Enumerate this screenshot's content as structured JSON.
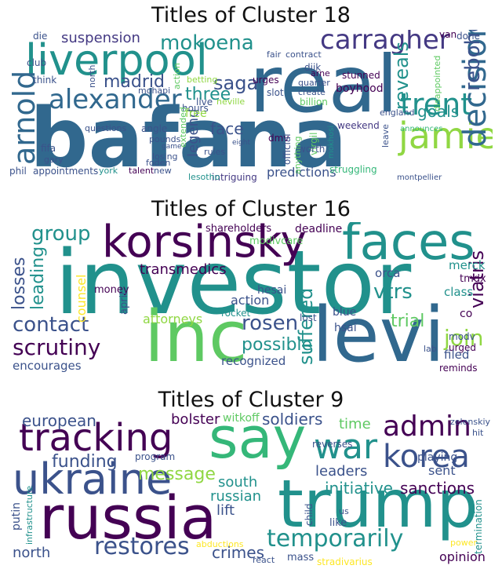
{
  "colors": {
    "c1": "#440154",
    "c2": "#3b528b",
    "c3": "#21918c",
    "c4": "#5ec962",
    "c5": "#fde725",
    "c6": "#31688e",
    "c7": "#35b779",
    "c8": "#90d743",
    "c9": "#443983"
  },
  "panels": [
    {
      "title": "Titles of Cluster 18",
      "words": [
        {
          "t": "bafana",
          "c": "c6"
        },
        {
          "t": "real",
          "c": "c6"
        },
        {
          "t": "liverpool",
          "c": "c3"
        },
        {
          "t": "carragher",
          "c": "c9"
        },
        {
          "t": "alexander",
          "c": "c6"
        },
        {
          "t": "arnold",
          "c": "c6"
        },
        {
          "t": "jamie",
          "c": "c8"
        },
        {
          "t": "trent",
          "c": "c3"
        },
        {
          "t": "decision",
          "c": "c6"
        },
        {
          "t": "mokoena",
          "c": "c3"
        },
        {
          "t": "madrid",
          "c": "c2"
        },
        {
          "t": "saga",
          "c": "c2"
        },
        {
          "t": "reveals",
          "c": "c3"
        },
        {
          "t": "rebohọ",
          "c": "c2"
        },
        {
          "t": "goals",
          "c": "c3"
        },
        {
          "t": "suspension",
          "c": "c9"
        },
        {
          "t": "three",
          "c": "c3"
        },
        {
          "t": "face",
          "c": "c2"
        },
        {
          "t": "legend",
          "c": "c2"
        },
        {
          "t": "predictions",
          "c": "c2"
        },
        {
          "t": "boyhood",
          "c": "c1"
        },
        {
          "t": "stunned",
          "c": "c1"
        },
        {
          "t": "billion",
          "c": "c4"
        },
        {
          "t": "weekend",
          "c": "c9"
        },
        {
          "t": "club",
          "c": "c2"
        },
        {
          "t": "questions",
          "c": "c2"
        },
        {
          "t": "appointments",
          "c": "c2"
        },
        {
          "t": "fifa",
          "c": "c2"
        },
        {
          "t": "phil",
          "c": "c2"
        },
        {
          "t": "intriguing",
          "c": "c9"
        },
        {
          "t": "montpellier",
          "c": "c2"
        },
        {
          "t": "struggling",
          "c": "c7"
        },
        {
          "t": "announces",
          "c": "c7"
        },
        {
          "t": "mokhosi",
          "c": "c3"
        },
        {
          "t": "virgil",
          "c": "c4"
        },
        {
          "t": "dmv",
          "c": "c1"
        },
        {
          "t": "worth",
          "c": "c2"
        },
        {
          "t": "official",
          "c": "c2"
        },
        {
          "t": "dijk",
          "c": "c2"
        },
        {
          "t": "slot",
          "c": "c2"
        },
        {
          "t": "quarter",
          "c": "c2"
        },
        {
          "t": "create",
          "c": "c2"
        },
        {
          "t": "arne",
          "c": "c1"
        },
        {
          "t": "urges",
          "c": "c1"
        },
        {
          "t": "neville",
          "c": "c8"
        },
        {
          "t": "live",
          "c": "c2"
        },
        {
          "t": "hours",
          "c": "c2"
        },
        {
          "t": "free",
          "c": "c8"
        },
        {
          "t": "betting",
          "c": "c8"
        },
        {
          "t": "angle",
          "c": "c2"
        },
        {
          "t": "pounds",
          "c": "c2"
        },
        {
          "t": "losing",
          "c": "c2"
        },
        {
          "t": "rules",
          "c": "c2"
        },
        {
          "t": "lesotho",
          "c": "c3"
        },
        {
          "t": "talent",
          "c": "c1"
        },
        {
          "t": "york",
          "c": "c3"
        },
        {
          "t": "gary",
          "c": "c2"
        },
        {
          "t": "think",
          "c": "c2"
        },
        {
          "t": "die",
          "c": "c2"
        },
        {
          "t": "done",
          "c": "c2"
        },
        {
          "t": "van",
          "c": "c1"
        },
        {
          "t": "contract",
          "c": "c2"
        },
        {
          "t": "fair",
          "c": "c2"
        },
        {
          "t": "disappointed",
          "c": "c4"
        },
        {
          "t": "extended",
          "c": "c4"
        },
        {
          "t": "foden",
          "c": "c2"
        },
        {
          "t": "new",
          "c": "c2"
        },
        {
          "t": "england",
          "c": "c2"
        },
        {
          "t": "leave",
          "c": "c2"
        },
        {
          "t": "mohapi",
          "c": "c2"
        },
        {
          "t": "action",
          "c": "c4"
        },
        {
          "t": "eight",
          "c": "c2"
        },
        {
          "t": "anything",
          "c": "c4"
        },
        {
          "t": "game",
          "c": "c2"
        },
        {
          "t": "north",
          "c": "c2"
        }
      ]
    },
    {
      "title": "Titles of Cluster 16",
      "words": [
        {
          "t": "investor",
          "c": "c3"
        },
        {
          "t": "inc",
          "c": "c4"
        },
        {
          "t": "levi",
          "c": "c6"
        },
        {
          "t": "korsinsky",
          "c": "c1"
        },
        {
          "t": "faces",
          "c": "c3"
        },
        {
          "t": "scrutiny",
          "c": "c1"
        },
        {
          "t": "contact",
          "c": "c2"
        },
        {
          "t": "group",
          "c": "c3"
        },
        {
          "t": "rosen",
          "c": "c2"
        },
        {
          "t": "join",
          "c": "c8"
        },
        {
          "t": "suffered",
          "c": "c3"
        },
        {
          "t": "vtrs",
          "c": "c3"
        },
        {
          "t": "possible",
          "c": "c3"
        },
        {
          "t": "trial",
          "c": "c4"
        },
        {
          "t": "viatris",
          "c": "c1"
        },
        {
          "t": "losses",
          "c": "c2"
        },
        {
          "t": "leading",
          "c": "c3"
        },
        {
          "t": "transmedics",
          "c": "c1"
        },
        {
          "t": "action",
          "c": "c2"
        },
        {
          "t": "attorneys",
          "c": "c8"
        },
        {
          "t": "encourages",
          "c": "c2"
        },
        {
          "t": "recognized",
          "c": "c2"
        },
        {
          "t": "shareholders",
          "c": "c1"
        },
        {
          "t": "deadline",
          "c": "c1"
        },
        {
          "t": "modivcare",
          "c": "c4"
        },
        {
          "t": "orca",
          "c": "c2"
        },
        {
          "t": "merck",
          "c": "c3"
        },
        {
          "t": "tmdx",
          "c": "c1"
        },
        {
          "t": "class",
          "c": "c3"
        },
        {
          "t": "co",
          "c": "c1"
        },
        {
          "t": "money",
          "c": "c1"
        },
        {
          "t": "hesai",
          "c": "c2"
        },
        {
          "t": "counsel",
          "c": "c5"
        },
        {
          "t": "april",
          "c": "c2"
        },
        {
          "t": "rocket",
          "c": "c3"
        },
        {
          "t": "blue",
          "c": "c2"
        },
        {
          "t": "hsai",
          "c": "c2"
        },
        {
          "t": "lost",
          "c": "c2"
        },
        {
          "t": "modv",
          "c": "c2"
        },
        {
          "t": "urged",
          "c": "c1"
        },
        {
          "t": "filed",
          "c": "c2"
        },
        {
          "t": "reminds",
          "c": "c1"
        },
        {
          "t": "lab",
          "c": "c2"
        }
      ]
    },
    {
      "title": "Titles of Cluster 9",
      "words": [
        {
          "t": "russia",
          "c": "c1"
        },
        {
          "t": "trump",
          "c": "c3"
        },
        {
          "t": "ukraine",
          "c": "c2"
        },
        {
          "t": "say",
          "c": "c7"
        },
        {
          "t": "tracking",
          "c": "c1"
        },
        {
          "t": "war",
          "c": "c3"
        },
        {
          "t": "korea",
          "c": "c2"
        },
        {
          "t": "admin",
          "c": "c1"
        },
        {
          "t": "temporarily",
          "c": "c3"
        },
        {
          "t": "restores",
          "c": "c2"
        },
        {
          "t": "european",
          "c": "c2"
        },
        {
          "t": "funding",
          "c": "c2"
        },
        {
          "t": "message",
          "c": "c8"
        },
        {
          "t": "bolster",
          "c": "c1"
        },
        {
          "t": "witkoff",
          "c": "c4"
        },
        {
          "t": "soldiers",
          "c": "c2"
        },
        {
          "t": "time",
          "c": "c4"
        },
        {
          "t": "initiative",
          "c": "c3"
        },
        {
          "t": "sanctions",
          "c": "c1"
        },
        {
          "t": "leaders",
          "c": "c2"
        },
        {
          "t": "sent",
          "c": "c2"
        },
        {
          "t": "playing",
          "c": "c2"
        },
        {
          "t": "reverses",
          "c": "c2"
        },
        {
          "t": "south",
          "c": "c3"
        },
        {
          "t": "russian",
          "c": "c3"
        },
        {
          "t": "lift",
          "c": "c2"
        },
        {
          "t": "program",
          "c": "c2"
        },
        {
          "t": "north",
          "c": "c2"
        },
        {
          "t": "crimes",
          "c": "c2"
        },
        {
          "t": "mass",
          "c": "c2"
        },
        {
          "t": "opinion",
          "c": "c1"
        },
        {
          "t": "stradivarius",
          "c": "c5"
        },
        {
          "t": "putin",
          "c": "c2"
        },
        {
          "t": "infrastructure",
          "c": "c3"
        },
        {
          "t": "child",
          "c": "c2"
        },
        {
          "t": "us",
          "c": "c2"
        },
        {
          "t": "like",
          "c": "c2"
        },
        {
          "t": "zelenskiy",
          "c": "c2"
        },
        {
          "t": "hit",
          "c": "c2"
        },
        {
          "t": "termination",
          "c": "c3"
        },
        {
          "t": "power",
          "c": "c5"
        },
        {
          "t": "abductions",
          "c": "c5"
        },
        {
          "t": "react",
          "c": "c2"
        }
      ]
    }
  ]
}
